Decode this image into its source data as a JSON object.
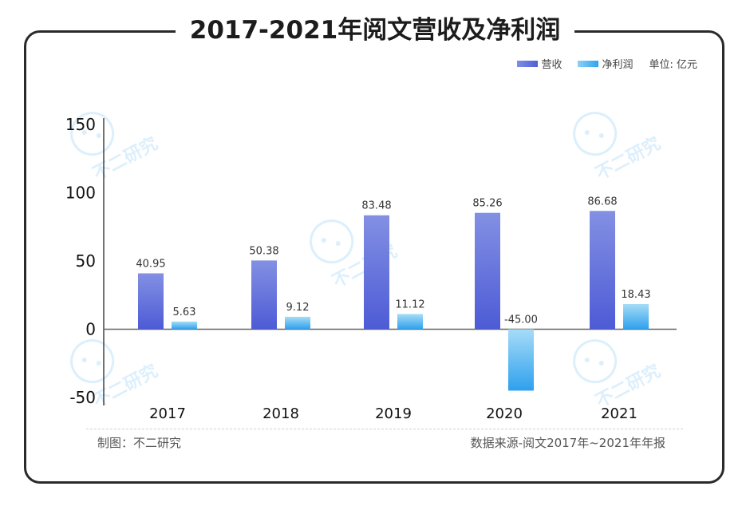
{
  "title": "2017-2021年阅文营收及净利润",
  "legend": {
    "series": [
      {
        "name": "营收",
        "color": "#5a6bd8"
      },
      {
        "name": "净利润",
        "color": "#3aaaf0"
      }
    ],
    "unit": "单位: 亿元"
  },
  "footer": {
    "left": "制图：不二研究",
    "right": "数据来源-阅文2017年~2021年年报"
  },
  "watermark": "不二研究",
  "chart_data": {
    "type": "bar",
    "categories": [
      "2017",
      "2018",
      "2019",
      "2020",
      "2021"
    ],
    "series": [
      {
        "name": "营收",
        "values": [
          40.95,
          50.38,
          83.48,
          85.26,
          86.68
        ],
        "labels": [
          "40.95",
          "50.38",
          "83.48",
          "85.26",
          "86.68"
        ]
      },
      {
        "name": "净利润",
        "values": [
          5.63,
          9.12,
          11.12,
          -45.0,
          18.43
        ],
        "labels": [
          "5.63",
          "9.12",
          "11.12",
          "-45.00",
          "18.43"
        ]
      }
    ],
    "yticks": [
      "150",
      "100",
      "50",
      "0",
      "-50"
    ],
    "ylim": [
      -50,
      150
    ],
    "title": "2017-2021年阅文营收及净利润",
    "xlabel": "",
    "ylabel": "",
    "legend_position": "top-right"
  }
}
